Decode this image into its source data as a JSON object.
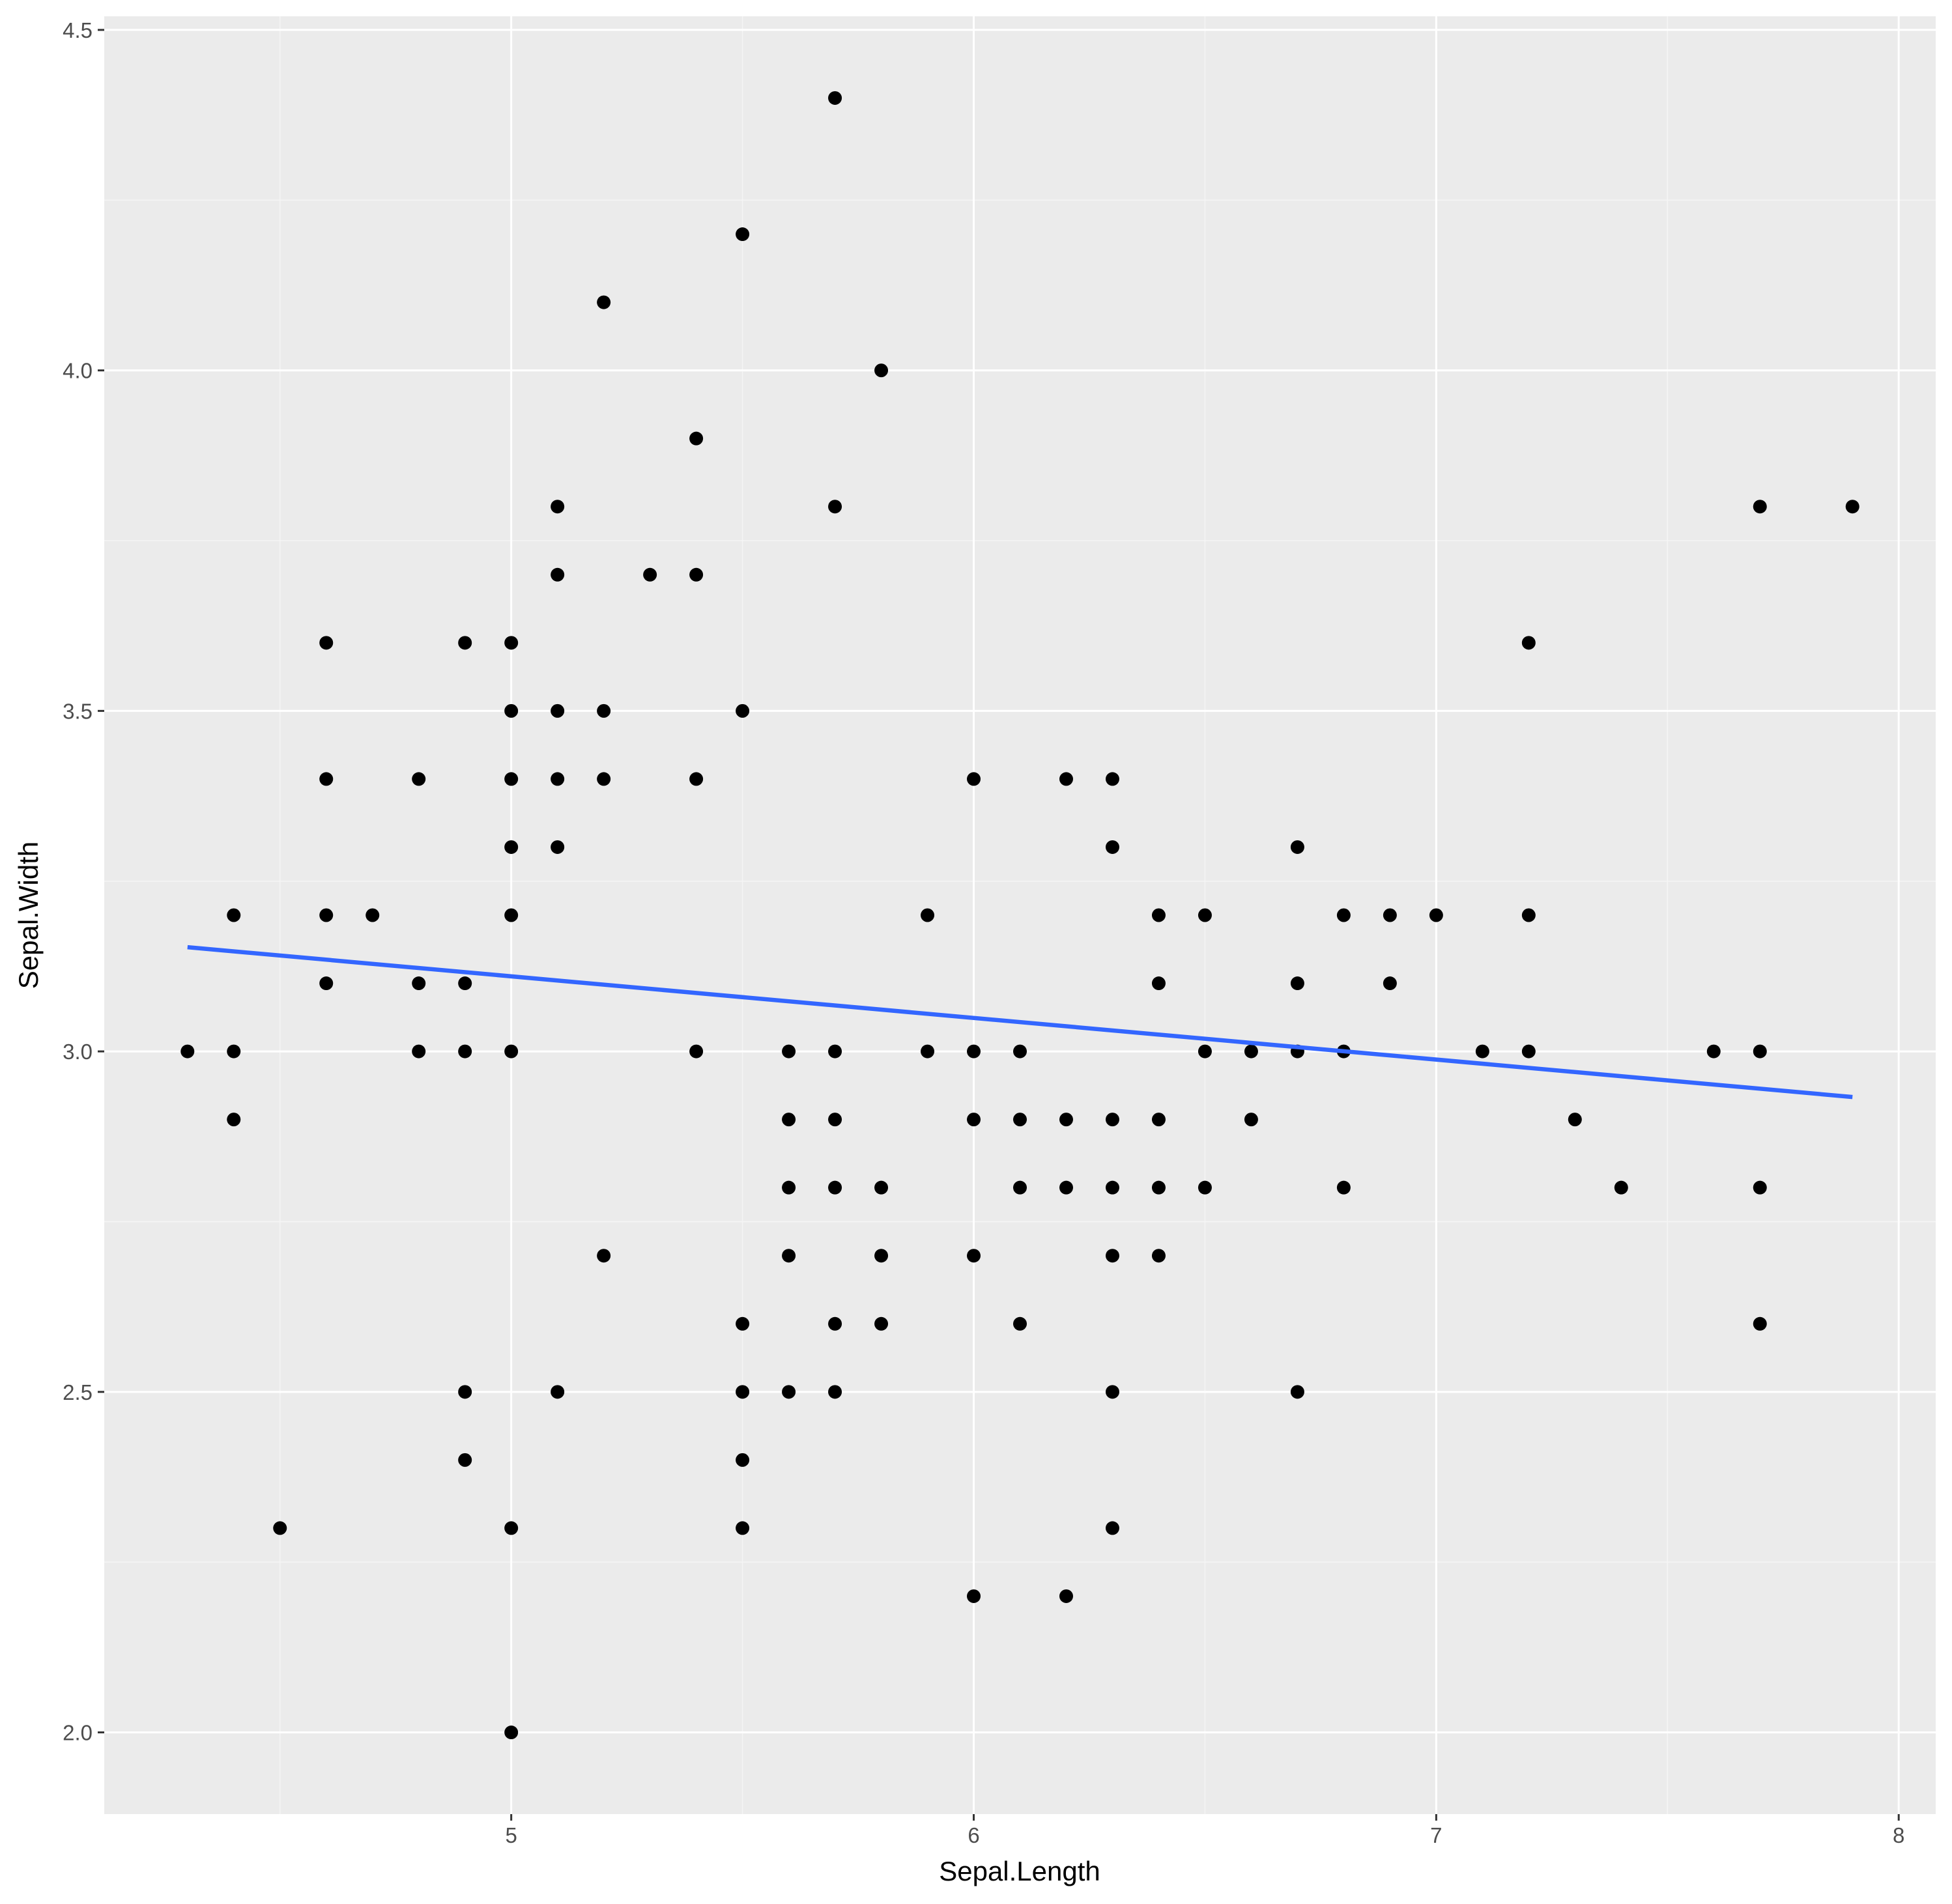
{
  "colors": {
    "panel_background": "#ebebeb",
    "grid_major": "#ffffff",
    "grid_minor": "#f5f5f5",
    "point": "#000000",
    "trend_line": "#3366ff",
    "tick_label": "#4d4d4d",
    "axis_title": "#000000"
  },
  "chart_data": {
    "type": "scatter",
    "title": "",
    "xlabel": "Sepal.Length",
    "ylabel": "Sepal.Width",
    "xlim": [
      4.12,
      8.08
    ],
    "ylim": [
      1.88,
      4.52
    ],
    "x_ticks": [
      5,
      6,
      7,
      8
    ],
    "x_tick_labels": [
      "5",
      "6",
      "7",
      "8"
    ],
    "y_ticks": [
      2.0,
      2.5,
      3.0,
      3.5,
      4.0,
      4.5
    ],
    "y_tick_labels": [
      "2.0",
      "2.5",
      "3.0",
      "3.5",
      "4.0",
      "4.5"
    ],
    "grid": true,
    "legend": "none",
    "points": [
      [
        4.3,
        3.0
      ],
      [
        4.4,
        3.2
      ],
      [
        4.4,
        3.0
      ],
      [
        4.4,
        2.9
      ],
      [
        4.5,
        2.3
      ],
      [
        4.6,
        3.6
      ],
      [
        4.6,
        3.4
      ],
      [
        4.6,
        3.2
      ],
      [
        4.6,
        3.1
      ],
      [
        4.7,
        3.2
      ],
      [
        4.8,
        3.4
      ],
      [
        4.8,
        3.1
      ],
      [
        4.8,
        3.0
      ],
      [
        4.9,
        3.6
      ],
      [
        4.9,
        3.1
      ],
      [
        4.9,
        3.0
      ],
      [
        4.9,
        2.5
      ],
      [
        4.9,
        2.4
      ],
      [
        5.0,
        3.6
      ],
      [
        5.0,
        3.5
      ],
      [
        5.0,
        3.4
      ],
      [
        5.0,
        3.3
      ],
      [
        5.0,
        3.2
      ],
      [
        5.0,
        3.0
      ],
      [
        5.0,
        2.3
      ],
      [
        5.0,
        2.0
      ],
      [
        5.1,
        3.8
      ],
      [
        5.1,
        3.7
      ],
      [
        5.1,
        3.5
      ],
      [
        5.1,
        3.4
      ],
      [
        5.1,
        3.3
      ],
      [
        5.1,
        2.5
      ],
      [
        5.2,
        4.1
      ],
      [
        5.2,
        3.5
      ],
      [
        5.2,
        3.4
      ],
      [
        5.2,
        2.7
      ],
      [
        5.3,
        3.7
      ],
      [
        5.4,
        3.9
      ],
      [
        5.4,
        3.7
      ],
      [
        5.4,
        3.4
      ],
      [
        5.4,
        3.0
      ],
      [
        5.5,
        4.2
      ],
      [
        5.5,
        3.5
      ],
      [
        5.5,
        2.6
      ],
      [
        5.5,
        2.5
      ],
      [
        5.5,
        2.4
      ],
      [
        5.5,
        2.3
      ],
      [
        5.6,
        3.0
      ],
      [
        5.6,
        2.9
      ],
      [
        5.6,
        2.8
      ],
      [
        5.6,
        2.7
      ],
      [
        5.6,
        2.5
      ],
      [
        5.7,
        4.4
      ],
      [
        5.7,
        3.8
      ],
      [
        5.7,
        3.0
      ],
      [
        5.7,
        2.9
      ],
      [
        5.7,
        2.8
      ],
      [
        5.7,
        2.6
      ],
      [
        5.7,
        2.5
      ],
      [
        5.8,
        4.0
      ],
      [
        5.8,
        2.8
      ],
      [
        5.8,
        2.7
      ],
      [
        5.8,
        2.6
      ],
      [
        5.9,
        3.2
      ],
      [
        5.9,
        3.0
      ],
      [
        6.0,
        3.4
      ],
      [
        6.0,
        3.0
      ],
      [
        6.0,
        2.9
      ],
      [
        6.0,
        2.7
      ],
      [
        6.0,
        2.2
      ],
      [
        6.1,
        3.0
      ],
      [
        6.1,
        2.9
      ],
      [
        6.1,
        2.8
      ],
      [
        6.1,
        2.6
      ],
      [
        6.2,
        3.4
      ],
      [
        6.2,
        2.9
      ],
      [
        6.2,
        2.8
      ],
      [
        6.2,
        2.2
      ],
      [
        6.3,
        3.4
      ],
      [
        6.3,
        3.3
      ],
      [
        6.3,
        2.9
      ],
      [
        6.3,
        2.8
      ],
      [
        6.3,
        2.7
      ],
      [
        6.3,
        2.5
      ],
      [
        6.3,
        2.3
      ],
      [
        6.4,
        3.2
      ],
      [
        6.4,
        3.1
      ],
      [
        6.4,
        2.9
      ],
      [
        6.4,
        2.8
      ],
      [
        6.4,
        2.7
      ],
      [
        6.5,
        3.2
      ],
      [
        6.5,
        3.0
      ],
      [
        6.5,
        2.8
      ],
      [
        6.6,
        3.0
      ],
      [
        6.6,
        2.9
      ],
      [
        6.7,
        3.3
      ],
      [
        6.7,
        3.1
      ],
      [
        6.7,
        3.0
      ],
      [
        6.7,
        2.5
      ],
      [
        6.8,
        3.2
      ],
      [
        6.8,
        3.0
      ],
      [
        6.8,
        2.8
      ],
      [
        6.9,
        3.2
      ],
      [
        6.9,
        3.1
      ],
      [
        7.0,
        3.2
      ],
      [
        7.1,
        3.0
      ],
      [
        7.2,
        3.6
      ],
      [
        7.2,
        3.2
      ],
      [
        7.2,
        3.0
      ],
      [
        7.3,
        2.9
      ],
      [
        7.4,
        2.8
      ],
      [
        7.6,
        3.0
      ],
      [
        7.7,
        3.8
      ],
      [
        7.7,
        3.0
      ],
      [
        7.7,
        2.8
      ],
      [
        7.7,
        2.6
      ],
      [
        7.9,
        3.8
      ]
    ],
    "trend_line": {
      "method": "lm",
      "x": [
        4.3,
        7.9
      ],
      "y": [
        3.153,
        2.933
      ]
    }
  }
}
